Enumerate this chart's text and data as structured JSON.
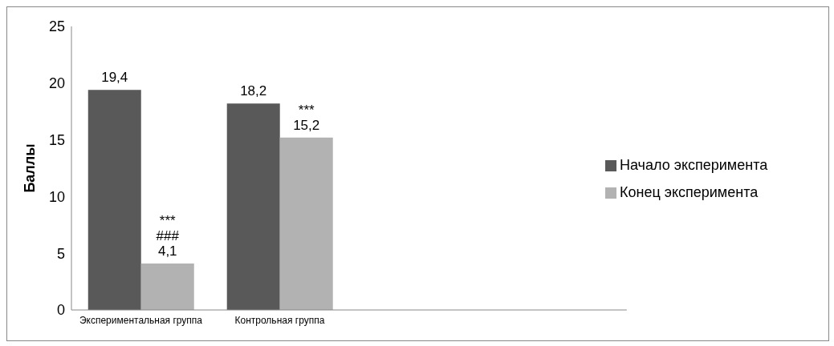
{
  "chart_data": {
    "type": "bar",
    "ylabel": "Баллы",
    "categories": [
      "Экспериментальная группа",
      "Контрольная группа",
      null,
      null
    ],
    "series": [
      {
        "name": "Начало эксперимента",
        "color": "#595959",
        "values": [
          19.4,
          18.2,
          null,
          null
        ],
        "value_labels": [
          "19,4",
          "18,2",
          null,
          null
        ]
      },
      {
        "name": "Конец эксперимента",
        "color": "#b2b2b2",
        "values": [
          4.1,
          15.2,
          null,
          null
        ],
        "value_labels": [
          "4,1",
          "15,2",
          null,
          null
        ]
      }
    ],
    "annotations": [
      {
        "text": "***",
        "x": "Экспериментальная группа",
        "y": 4.1
      },
      {
        "text": "###",
        "x": "Экспериментальная группа",
        "y": 4.1
      },
      {
        "text": "***",
        "x": "Контрольная группа",
        "y": 15.2
      }
    ],
    "ylim": [
      0,
      25
    ],
    "yticks": [
      0,
      5,
      10,
      15,
      20,
      25
    ],
    "grid": false,
    "legend": "right"
  }
}
